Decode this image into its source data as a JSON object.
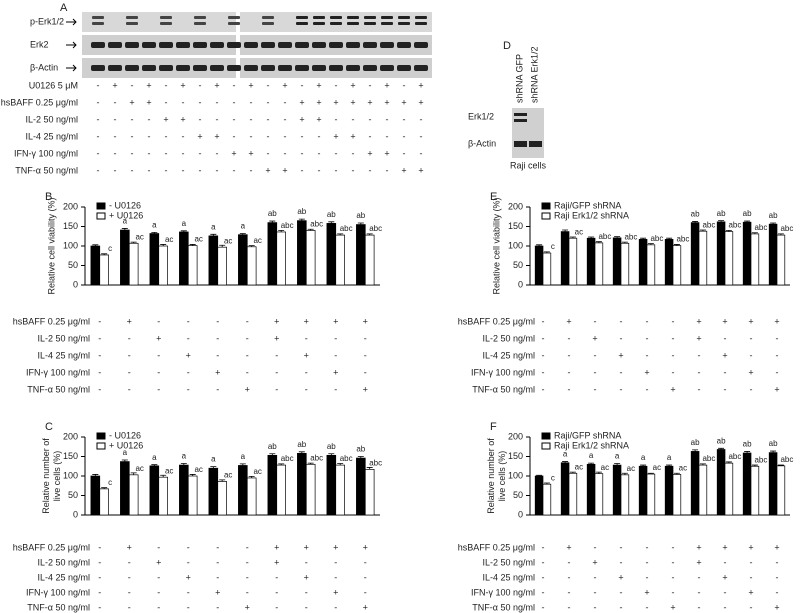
{
  "panel_a": {
    "label": "A",
    "blot_labels": [
      "p-Erk1/2",
      "Erk2",
      "β-Actin"
    ],
    "treatments": [
      {
        "label": "U0126 5 μM",
        "marks": [
          "-",
          "+",
          "-",
          "+",
          "-",
          "+",
          "-",
          "+",
          "-",
          "+",
          "-",
          "+",
          "-",
          "+",
          "-",
          "+",
          "-",
          "+",
          "-",
          "+"
        ]
      },
      {
        "label": "hsBAFF 0.25 μg/ml",
        "marks": [
          "-",
          "-",
          "+",
          "+",
          "-",
          "-",
          "-",
          "-",
          "-",
          "-",
          "-",
          "-",
          "+",
          "+",
          "+",
          "+",
          "+",
          "+",
          "+",
          "+"
        ]
      },
      {
        "label": "IL-2 50 ng/ml",
        "marks": [
          "-",
          "-",
          "-",
          "-",
          "+",
          "+",
          "-",
          "-",
          "-",
          "-",
          "-",
          "-",
          "+",
          "+",
          "-",
          "-",
          "-",
          "-",
          "-",
          "-"
        ]
      },
      {
        "label": "IL-4 25 ng/ml",
        "marks": [
          "-",
          "-",
          "-",
          "-",
          "-",
          "-",
          "+",
          "+",
          "-",
          "-",
          "-",
          "-",
          "-",
          "-",
          "+",
          "+",
          "-",
          "-",
          "-",
          "-"
        ]
      },
      {
        "label": "IFN-γ 100 ng/ml",
        "marks": [
          "-",
          "-",
          "-",
          "-",
          "-",
          "-",
          "-",
          "-",
          "+",
          "+",
          "-",
          "-",
          "-",
          "-",
          "-",
          "-",
          "+",
          "+",
          "-",
          "-"
        ]
      },
      {
        "label": "TNF-α 50 ng/ml",
        "marks": [
          "-",
          "-",
          "-",
          "-",
          "-",
          "-",
          "-",
          "-",
          "-",
          "-",
          "+",
          "+",
          "-",
          "-",
          "-",
          "-",
          "-",
          "-",
          "+",
          "+"
        ]
      }
    ]
  },
  "panel_d": {
    "label": "D",
    "lanes": [
      "shRNA GFP",
      "shRNA Erk1/2"
    ],
    "blot_labels": [
      "Erk1/2",
      "β-Actin"
    ],
    "caption": "Raji cells"
  },
  "chart_data": [
    {
      "type": "bar",
      "panel": "B",
      "ylabel": [
        "Relative cell viability (%)"
      ],
      "ylim": [
        0,
        200
      ],
      "yticks": [
        0,
        50,
        100,
        150,
        200
      ],
      "series": [
        {
          "name": "- U0126",
          "color": "#000000",
          "values": [
            100,
            141,
            132,
            136,
            126,
            129,
            160,
            165,
            158,
            155
          ],
          "errors": [
            3,
            4,
            3,
            3,
            4,
            3,
            4,
            4,
            4,
            4
          ],
          "labels": [
            null,
            "a",
            "a",
            "a",
            "a",
            "a",
            "ab",
            "ab",
            "ab",
            "ab"
          ]
        },
        {
          "name": "+ U0126",
          "color": "#ffffff",
          "values": [
            77,
            107,
            100,
            101,
            97,
            98,
            136,
            140,
            128,
            128
          ],
          "errors": [
            3,
            3,
            4,
            3,
            5,
            3,
            4,
            3,
            3,
            3
          ],
          "labels": [
            "c",
            "ac",
            "ac",
            "ac",
            "ac",
            "ac",
            "abc",
            "abc",
            "abc",
            "abc"
          ]
        }
      ],
      "treatments": [
        {
          "label": "hsBAFF 0.25 μg/ml",
          "marks": [
            "-",
            "+",
            "-",
            "-",
            "-",
            "-",
            "+",
            "+",
            "+",
            "+"
          ]
        },
        {
          "label": "IL-2 50 ng/ml",
          "marks": [
            "-",
            "-",
            "+",
            "-",
            "-",
            "-",
            "+",
            "-",
            "-",
            "-"
          ]
        },
        {
          "label": "IL-4 25 ng/ml",
          "marks": [
            "-",
            "-",
            "-",
            "+",
            "-",
            "-",
            "-",
            "+",
            "-",
            "-"
          ]
        },
        {
          "label": "IFN-γ 100 ng/ml",
          "marks": [
            "-",
            "-",
            "-",
            "-",
            "+",
            "-",
            "-",
            "-",
            "+",
            "-"
          ]
        },
        {
          "label": "TNF-α 50 ng/ml",
          "marks": [
            "-",
            "-",
            "-",
            "-",
            "-",
            "+",
            "-",
            "-",
            "-",
            "+"
          ]
        }
      ]
    },
    {
      "type": "bar",
      "panel": "C",
      "ylabel": [
        "Relative number of",
        "live cells (%)"
      ],
      "ylim": [
        0,
        200
      ],
      "yticks": [
        0,
        50,
        100,
        150,
        200
      ],
      "series": [
        {
          "name": "- U0126",
          "color": "#000000",
          "values": [
            100,
            137,
            126,
            128,
            120,
            127,
            153,
            158,
            153,
            146
          ],
          "errors": [
            4,
            4,
            3,
            4,
            4,
            4,
            4,
            4,
            4,
            4
          ],
          "labels": [
            null,
            "a",
            "a",
            "a",
            "a",
            "a",
            "ab",
            "ab",
            "ab",
            "ab"
          ]
        },
        {
          "name": "+ U0126",
          "color": "#ffffff",
          "values": [
            67,
            103,
            97,
            100,
            86,
            95,
            128,
            130,
            128,
            117
          ],
          "errors": [
            3,
            5,
            5,
            4,
            4,
            4,
            3,
            3,
            4,
            5
          ],
          "labels": [
            "c",
            "ac",
            "ac",
            "ac",
            "ac",
            "ac",
            "abc",
            "abc",
            "abc",
            "abc"
          ]
        }
      ],
      "treatments": [
        {
          "label": "hsBAFF 0.25 μg/ml",
          "marks": [
            "-",
            "+",
            "-",
            "-",
            "-",
            "-",
            "+",
            "+",
            "+",
            "+"
          ]
        },
        {
          "label": "IL-2 50 ng/ml",
          "marks": [
            "-",
            "-",
            "+",
            "-",
            "-",
            "-",
            "+",
            "-",
            "-",
            "-"
          ]
        },
        {
          "label": "IL-4 25 ng/ml",
          "marks": [
            "-",
            "-",
            "-",
            "+",
            "-",
            "-",
            "-",
            "+",
            "-",
            "-"
          ]
        },
        {
          "label": "IFN-γ 100 ng/ml",
          "marks": [
            "-",
            "-",
            "-",
            "-",
            "+",
            "-",
            "-",
            "-",
            "+",
            "-"
          ]
        },
        {
          "label": "TNF-α 50 ng/ml",
          "marks": [
            "-",
            "-",
            "-",
            "-",
            "-",
            "+",
            "-",
            "-",
            "-",
            "+"
          ]
        }
      ]
    },
    {
      "type": "bar",
      "panel": "E",
      "ylabel": [
        "Relative cell viability (%)"
      ],
      "ylim": [
        0,
        200
      ],
      "yticks": [
        0,
        50,
        100,
        150,
        200
      ],
      "series": [
        {
          "name": "Raji/GFP shRNA",
          "color": "#000000",
          "values": [
            100,
            137,
            120,
            121,
            117,
            117,
            160,
            162,
            161,
            156
          ],
          "errors": [
            3,
            4,
            3,
            3,
            3,
            3,
            3,
            3,
            3,
            3
          ],
          "labels": [
            null,
            null,
            null,
            null,
            null,
            null,
            "ab",
            "ab",
            "ab",
            "ab"
          ]
        },
        {
          "name": "Raji Erk1/2 shRNA",
          "color": "#ffffff",
          "values": [
            82,
            120,
            108,
            107,
            103,
            101,
            138,
            137,
            131,
            128
          ],
          "errors": [
            3,
            3,
            3,
            3,
            3,
            3,
            3,
            3,
            3,
            3
          ],
          "labels": [
            "c",
            "ac",
            "abc",
            "abc",
            "abc",
            "abc",
            "abc",
            "abc",
            "abc",
            "abc"
          ]
        }
      ],
      "treatments": [
        {
          "label": "hsBAFF 0.25 μg/ml",
          "marks": [
            "-",
            "+",
            "-",
            "-",
            "-",
            "-",
            "+",
            "+",
            "+",
            "+"
          ]
        },
        {
          "label": "IL-2 50 ng/ml",
          "marks": [
            "-",
            "-",
            "+",
            "-",
            "-",
            "-",
            "+",
            "-",
            "-",
            "-"
          ]
        },
        {
          "label": "IL-4 25 ng/ml",
          "marks": [
            "-",
            "-",
            "-",
            "+",
            "-",
            "-",
            "-",
            "+",
            "-",
            "-"
          ]
        },
        {
          "label": "IFN-γ 100 ng/ml",
          "marks": [
            "-",
            "-",
            "-",
            "-",
            "+",
            "-",
            "-",
            "-",
            "+",
            "-"
          ]
        },
        {
          "label": "TNF-α 50 ng/ml",
          "marks": [
            "-",
            "-",
            "-",
            "-",
            "-",
            "+",
            "-",
            "-",
            "-",
            "+"
          ]
        }
      ]
    },
    {
      "type": "bar",
      "panel": "F",
      "ylabel": [
        "Relative number of",
        "live cells (%)"
      ],
      "ylim": [
        0,
        200
      ],
      "yticks": [
        0,
        50,
        100,
        150,
        200
      ],
      "series": [
        {
          "name": "Raji/GFP shRNA",
          "color": "#000000",
          "values": [
            100,
            134,
            130,
            128,
            125,
            125,
            163,
            168,
            159,
            160
          ],
          "errors": [
            2,
            3,
            3,
            4,
            3,
            3,
            4,
            3,
            4,
            4
          ],
          "labels": [
            null,
            "a",
            "a",
            "a",
            "a",
            "a",
            "ab",
            "ab",
            "ab",
            "ab"
          ]
        },
        {
          "name": "Raji Erk1/2 shRNA",
          "color": "#ffffff",
          "values": [
            79,
            107,
            106,
            103,
            105,
            104,
            128,
            133,
            125,
            126
          ],
          "errors": [
            3,
            3,
            4,
            4,
            2,
            3,
            3,
            3,
            3,
            2
          ],
          "labels": [
            "c",
            "ac",
            "ac",
            "ac",
            "ac",
            "ac",
            "abc",
            "abc",
            "abc",
            "abc"
          ]
        }
      ],
      "treatments": [
        {
          "label": "hsBAFF 0.25 μg/ml",
          "marks": [
            "-",
            "+",
            "-",
            "-",
            "-",
            "-",
            "+",
            "+",
            "+",
            "+"
          ]
        },
        {
          "label": "IL-2 50 ng/ml",
          "marks": [
            "-",
            "-",
            "+",
            "-",
            "-",
            "-",
            "+",
            "-",
            "-",
            "-"
          ]
        },
        {
          "label": "IL-4 25 ng/ml",
          "marks": [
            "-",
            "-",
            "-",
            "+",
            "-",
            "-",
            "-",
            "+",
            "-",
            "-"
          ]
        },
        {
          "label": "IFN-γ 100 ng/ml",
          "marks": [
            "-",
            "-",
            "-",
            "-",
            "+",
            "-",
            "-",
            "-",
            "+",
            "-"
          ]
        },
        {
          "label": "TNF-α 50 ng/ml",
          "marks": [
            "-",
            "-",
            "-",
            "-",
            "-",
            "+",
            "-",
            "-",
            "-",
            "+"
          ]
        }
      ]
    }
  ]
}
